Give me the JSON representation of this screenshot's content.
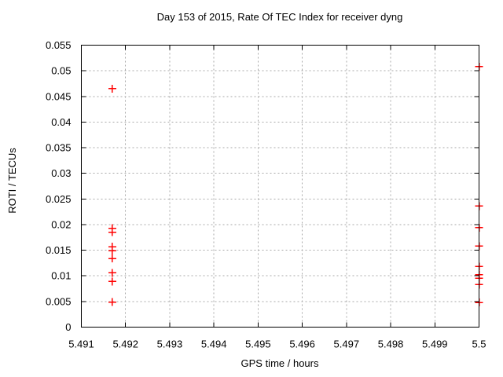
{
  "chart_data": {
    "type": "scatter",
    "title": "Day 153 of 2015, Rate Of TEC Index for receiver dyng",
    "xlabel": "GPS time / hours",
    "ylabel": "ROTI / TECUs",
    "xlim": [
      5.491,
      5.5
    ],
    "ylim": [
      0,
      0.055
    ],
    "xticks": [
      5.491,
      5.492,
      5.493,
      5.494,
      5.495,
      5.496,
      5.497,
      5.498,
      5.499,
      5.5
    ],
    "xtick_labels": [
      "5.491",
      "5.492",
      "5.493",
      "5.494",
      "5.495",
      "5.496",
      "5.497",
      "5.498",
      "5.499",
      "5.5"
    ],
    "yticks": [
      0,
      0.005,
      0.01,
      0.015,
      0.02,
      0.025,
      0.03,
      0.035,
      0.04,
      0.045,
      0.05,
      0.055
    ],
    "ytick_labels": [
      "0",
      "0.005",
      "0.01",
      "0.015",
      "0.02",
      "0.025",
      "0.03",
      "0.035",
      "0.04",
      "0.045",
      "0.05",
      "0.055"
    ],
    "grid": true,
    "legend": "none",
    "marker": "plus",
    "colors": {
      "marker": "#ff0000",
      "grid": "#a8a8a8",
      "axis": "#000000",
      "background": "#ffffff"
    },
    "series": [
      {
        "color": "#ff0000",
        "points": [
          [
            5.4917,
            0.0465
          ],
          [
            5.4917,
            0.0193
          ],
          [
            5.4917,
            0.0185
          ],
          [
            5.4917,
            0.0157
          ],
          [
            5.4917,
            0.0149
          ],
          [
            5.4917,
            0.0134
          ],
          [
            5.4917,
            0.0106
          ],
          [
            5.4917,
            0.0089
          ],
          [
            5.4917,
            0.0049
          ],
          [
            5.5,
            0.0508
          ],
          [
            5.5,
            0.0236
          ],
          [
            5.5,
            0.0194
          ],
          [
            5.5,
            0.0158
          ],
          [
            5.5,
            0.0118
          ],
          [
            5.5,
            0.0102
          ],
          [
            5.5,
            0.0095
          ],
          [
            5.5,
            0.0083
          ],
          [
            5.5,
            0.0048
          ]
        ]
      }
    ]
  }
}
